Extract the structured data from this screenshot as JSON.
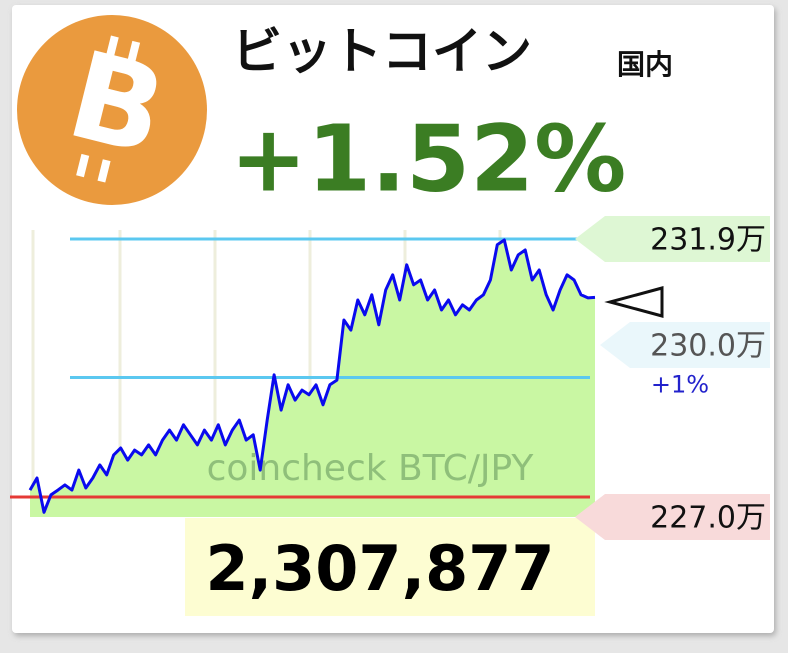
{
  "chart_data": {
    "type": "line",
    "title": "ビットコイン",
    "subtitle": "国内",
    "change_label": "+1.52%",
    "price_label": "2,307,877",
    "watermark": "coincheck BTC/JPY",
    "series": [
      {
        "color": "#0a0aee",
        "fill": "#c9f7a3",
        "values": [
          2271300,
          2273600,
          2267100,
          2270400,
          2271300,
          2272300,
          2271300,
          2275100,
          2271700,
          2273600,
          2276100,
          2274200,
          2278000,
          2279300,
          2277000,
          2278900,
          2278000,
          2279900,
          2278000,
          2280800,
          2282700,
          2280800,
          2283700,
          2281800,
          2279900,
          2282700,
          2280800,
          2283700,
          2279900,
          2282700,
          2284600,
          2280800,
          2281800,
          2275100,
          2284600,
          2293200,
          2286500,
          2291300,
          2288400,
          2290300,
          2289400,
          2291300,
          2287500,
          2291300,
          2292200,
          2303600,
          2301700,
          2307400,
          2304600,
          2308400,
          2302700,
          2309300,
          2312200,
          2307400,
          2314100,
          2310300,
          2311200,
          2307400,
          2309300,
          2305500,
          2307400,
          2304600,
          2306500,
          2305500,
          2307400,
          2308400,
          2311200,
          2317900,
          2318800,
          2313100,
          2316000,
          2316900,
          2311200,
          2313100,
          2308400,
          2305500,
          2309300,
          2312200,
          2311200,
          2308400,
          2307800,
          2307900
        ]
      }
    ],
    "ylim": [
      2266200,
      2320700
    ],
    "yticks": [
      {
        "value": 2319000,
        "label": "231.9万"
      },
      {
        "value": 2300000,
        "label": "230.0万"
      },
      {
        "value": 2270000,
        "label": "227.0万"
      }
    ],
    "ytick_line_colors": [
      "#5bc8f0",
      null,
      "#e53935"
    ],
    "ytick_box_colors": [
      "#def7d4",
      "#eaf7fb",
      "#f8dada"
    ],
    "reference_lines": [
      {
        "value": 2292700,
        "label": "+1%",
        "color": "#5bc8f0"
      }
    ]
  }
}
